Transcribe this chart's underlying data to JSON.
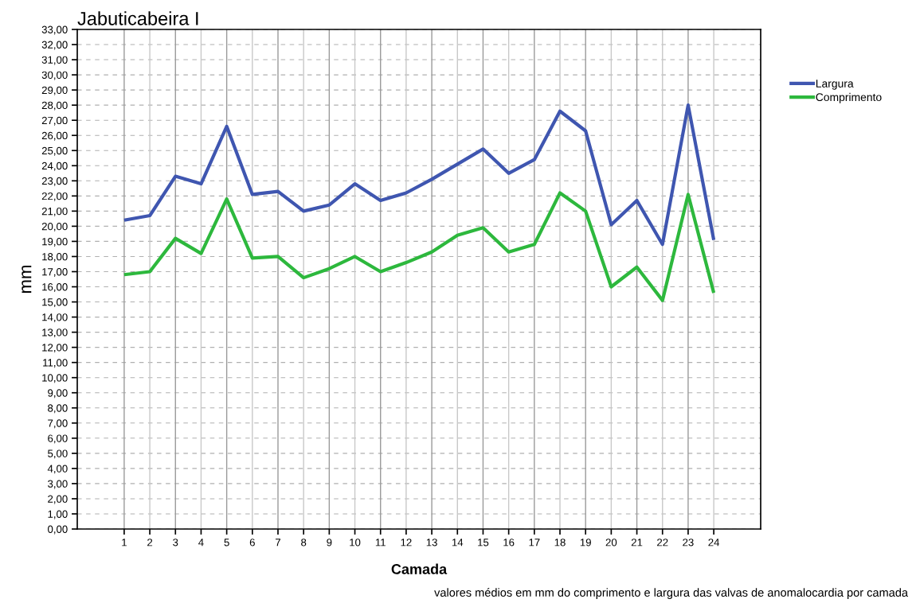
{
  "chart_data": {
    "type": "line",
    "title": "Jabuticabeira I",
    "xlabel": "Camada",
    "ylabel": "mm",
    "categories": [
      "1",
      "2",
      "3",
      "4",
      "5",
      "6",
      "7",
      "8",
      "9",
      "10",
      "11",
      "12",
      "13",
      "14",
      "15",
      "16",
      "17",
      "18",
      "19",
      "20",
      "21",
      "22",
      "23",
      "24"
    ],
    "series": [
      {
        "name": "Largura",
        "color": "#3f56b0",
        "values": [
          20.4,
          20.7,
          23.3,
          22.8,
          26.6,
          22.1,
          22.3,
          21.0,
          21.4,
          22.8,
          21.7,
          22.2,
          23.1,
          24.1,
          25.1,
          23.5,
          24.4,
          27.6,
          26.3,
          20.1,
          21.7,
          18.8,
          28.0,
          19.1
        ]
      },
      {
        "name": "Comprimento",
        "color": "#2db83d",
        "values": [
          16.8,
          17.0,
          19.2,
          18.2,
          21.8,
          17.9,
          18.0,
          16.6,
          17.2,
          18.0,
          17.0,
          17.6,
          18.3,
          19.4,
          19.9,
          18.3,
          18.8,
          22.2,
          21.0,
          16.0,
          17.3,
          15.1,
          22.1,
          15.6
        ]
      }
    ],
    "ylim": [
      0,
      33
    ],
    "yticks": [
      {
        "value": 0,
        "label": "0,00"
      },
      {
        "value": 1,
        "label": "1,00"
      },
      {
        "value": 2,
        "label": "2,00"
      },
      {
        "value": 3,
        "label": "3,00"
      },
      {
        "value": 4,
        "label": "4,00"
      },
      {
        "value": 5,
        "label": "5,00"
      },
      {
        "value": 6,
        "label": "6,00"
      },
      {
        "value": 7,
        "label": "7,00"
      },
      {
        "value": 8,
        "label": "8,00"
      },
      {
        "value": 9,
        "label": "9,00"
      },
      {
        "value": 10,
        "label": "10,00"
      },
      {
        "value": 11,
        "label": "11,00"
      },
      {
        "value": 12,
        "label": "12,00"
      },
      {
        "value": 13,
        "label": "13,00"
      },
      {
        "value": 14,
        "label": "14,00"
      },
      {
        "value": 15,
        "label": "15,00"
      },
      {
        "value": 16,
        "label": "16,00"
      },
      {
        "value": 17,
        "label": "17,00"
      },
      {
        "value": 18,
        "label": "18,00"
      },
      {
        "value": 19,
        "label": "19,00"
      },
      {
        "value": 20,
        "label": "20,00"
      },
      {
        "value": 21,
        "label": "21,00"
      },
      {
        "value": 22,
        "label": "22,00"
      },
      {
        "value": 23,
        "label": "23,00"
      },
      {
        "value": 24,
        "label": "24,00"
      },
      {
        "value": 25,
        "label": "25,00"
      },
      {
        "value": 26,
        "label": "26,00"
      },
      {
        "value": 27,
        "label": "27,00"
      },
      {
        "value": 28,
        "label": "28,00"
      },
      {
        "value": 29,
        "label": "29,00"
      },
      {
        "value": 30,
        "label": "30,00"
      },
      {
        "value": 31,
        "label": "31,00"
      },
      {
        "value": 32,
        "label": "32,00"
      },
      {
        "value": 33,
        "label": "33,00"
      }
    ],
    "grid": true,
    "legend": "top right",
    "marker": "none",
    "line_style": "solid",
    "annotations": [
      "valores médios em mm do comprimento e largura das valvas de anomalocardia por camada"
    ]
  }
}
